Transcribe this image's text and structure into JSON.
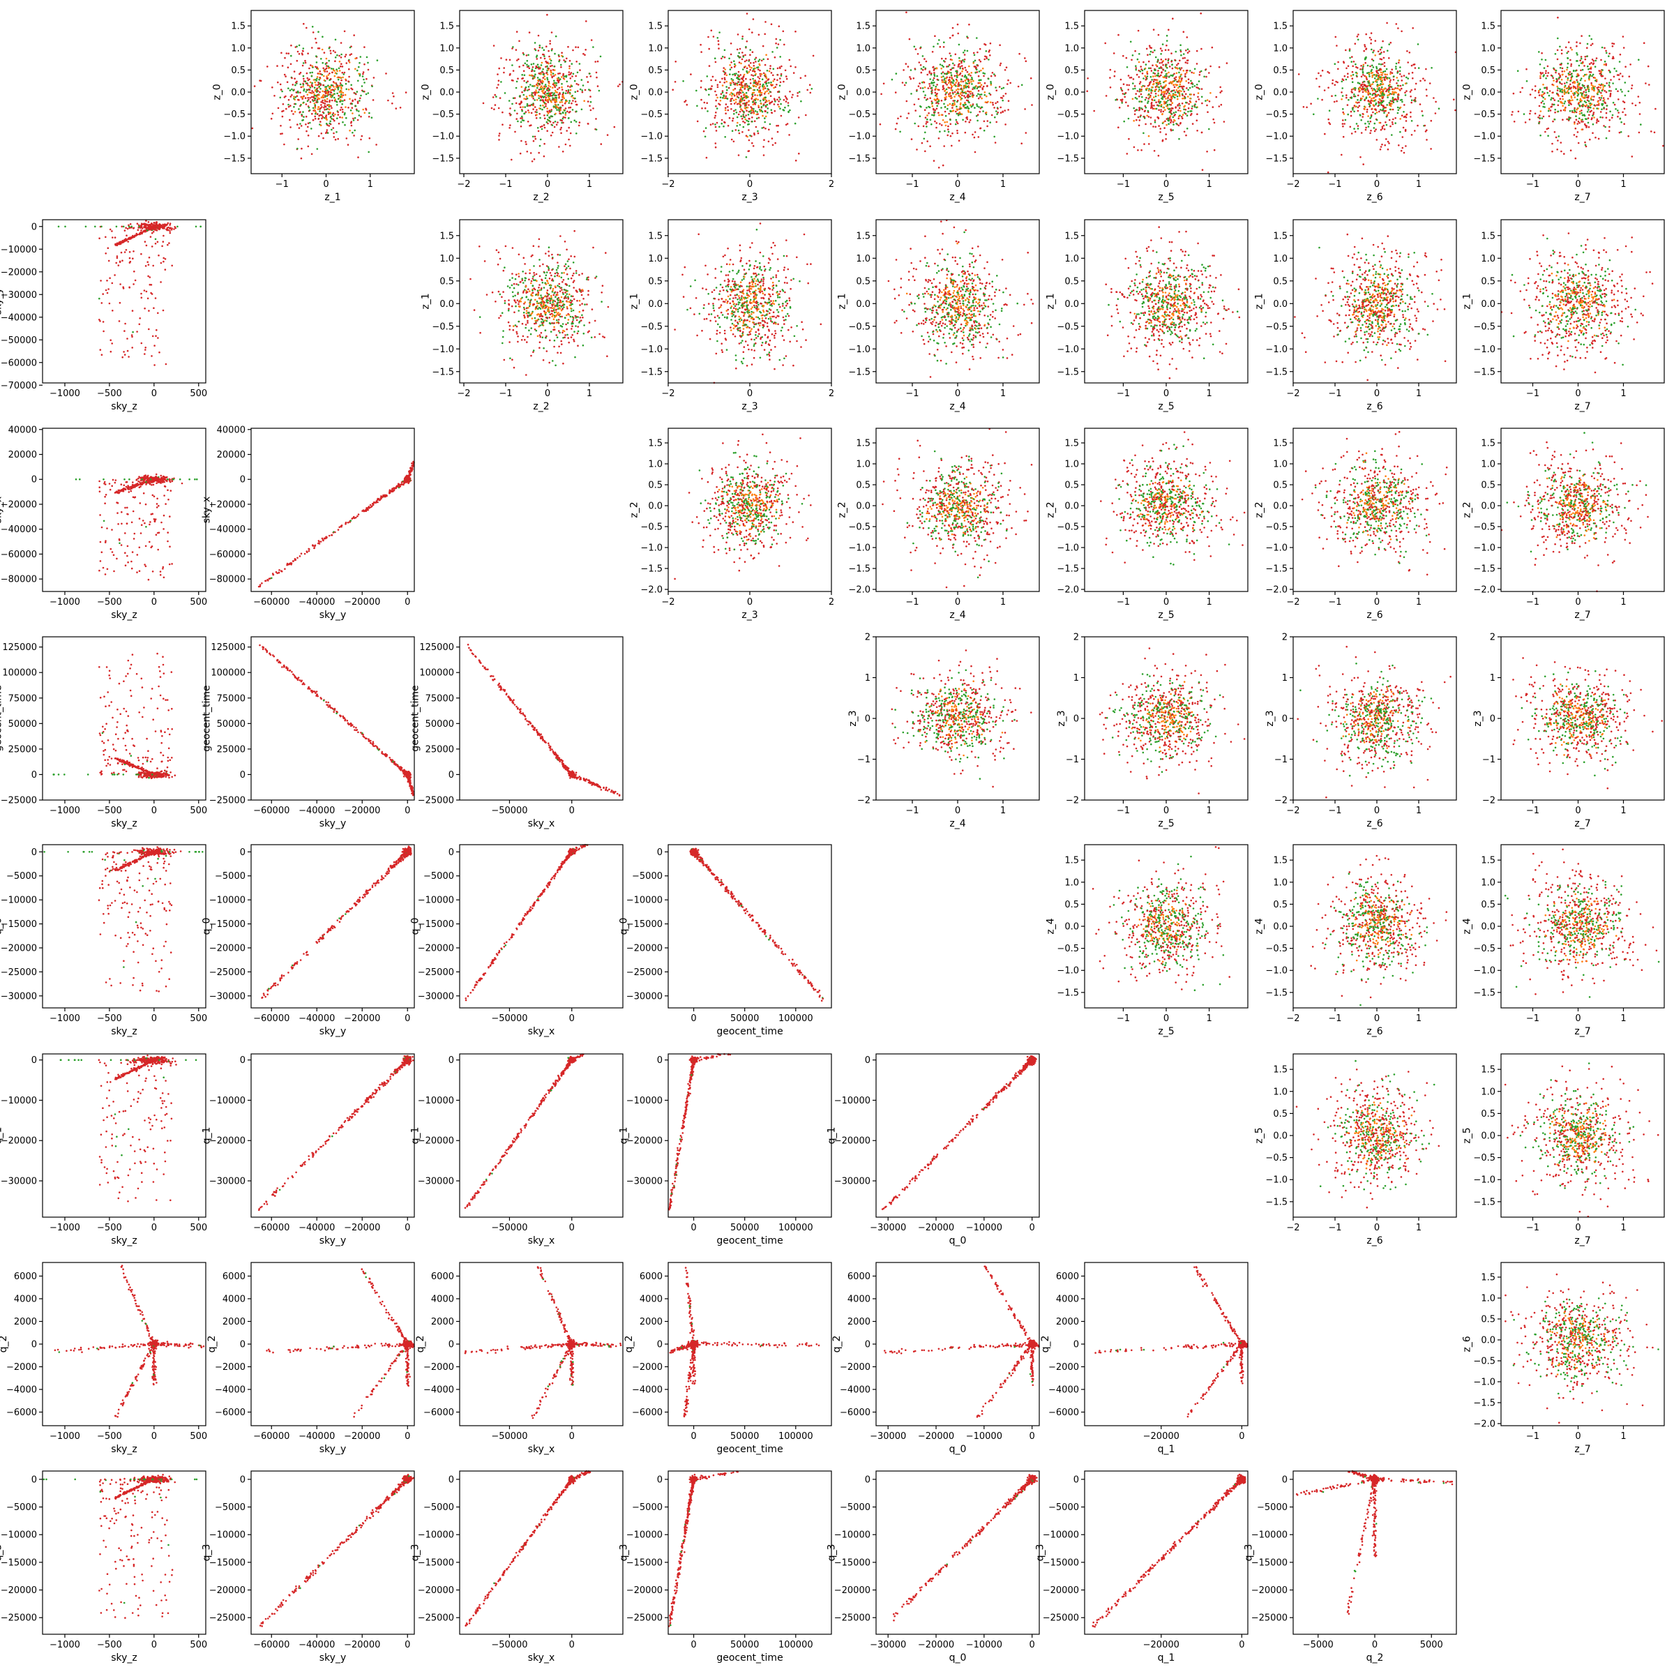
{
  "chart_data": {
    "type": "scatter",
    "title": "",
    "layout": "8x8 pairwise scatter matrix: lower triangle shows physical parameters, upper triangle shows latent z variables",
    "grid": false,
    "legend": null,
    "colors": {
      "red": "#d62728",
      "green": "#2ca02c",
      "orange": "#ff7f0e"
    },
    "lower_variables": [
      "sky_z",
      "sky_y",
      "sky_x",
      "geocent_time",
      "q_0",
      "q_1",
      "q_2",
      "q_3"
    ],
    "upper_variables": [
      "z_0",
      "z_1",
      "z_2",
      "z_3",
      "z_4",
      "z_5",
      "z_6",
      "z_7"
    ],
    "lower_axes": {
      "sky_z": {
        "lim": [
          -1250,
          580
        ],
        "ticks": [
          -1000,
          -500,
          0,
          500
        ],
        "labels": [
          "−1000",
          "−500",
          "0",
          "500"
        ]
      },
      "sky_y": {
        "lim": [
          -69000,
          3000
        ],
        "ticks": [
          -70000,
          -60000,
          -50000,
          -40000,
          -30000,
          -20000,
          -10000,
          0
        ],
        "labels": [
          "−70000",
          "−60000",
          "−50000",
          "−40000",
          "−30000",
          "−20000",
          "−10000",
          "0"
        ]
      },
      "sky_y_x": {
        "lim": [
          -69000,
          3000
        ],
        "ticks": [
          -60000,
          -40000,
          -20000,
          0
        ],
        "labels": [
          "−60000",
          "−40000",
          "−20000",
          "0"
        ]
      },
      "sky_x": {
        "lim": [
          -90000,
          41000
        ],
        "ticks": [
          -80000,
          -60000,
          -40000,
          -20000,
          0,
          20000,
          40000
        ],
        "labels": [
          "−80000",
          "−60000",
          "−40000",
          "−20000",
          "0",
          "20000",
          "40000"
        ]
      },
      "sky_x_x": {
        "lim": [
          -90000,
          41000
        ],
        "ticks": [
          -50000,
          0
        ],
        "labels": [
          "−50000",
          "0"
        ]
      },
      "geocent_time": {
        "lim": [
          -25000,
          135000
        ],
        "ticks": [
          -25000,
          0,
          25000,
          50000,
          75000,
          100000,
          125000
        ],
        "labels": [
          "−25000",
          "0",
          "25000",
          "50000",
          "75000",
          "100000",
          "125000"
        ]
      },
      "geocent_time_x": {
        "lim": [
          -25000,
          135000
        ],
        "ticks": [
          0,
          50000,
          100000
        ],
        "labels": [
          "0",
          "50000",
          "100000"
        ]
      },
      "q_0": {
        "lim": [
          -32500,
          1500
        ],
        "ticks": [
          -30000,
          -25000,
          -20000,
          -15000,
          -10000,
          -5000,
          0
        ],
        "labels": [
          "−30000",
          "−25000",
          "−20000",
          "−15000",
          "−10000",
          "−5000",
          "0"
        ]
      },
      "q_0_x": {
        "lim": [
          -32500,
          1500
        ],
        "ticks": [
          -30000,
          -20000,
          -10000,
          0
        ],
        "labels": [
          "−30000",
          "−20000",
          "−10000",
          "0"
        ]
      },
      "q_1": {
        "lim": [
          -39000,
          1500
        ],
        "ticks": [
          -30000,
          -20000,
          -10000,
          0
        ],
        "labels": [
          "−30000",
          "−20000",
          "−10000",
          "0"
        ]
      },
      "q_1_x": {
        "lim": [
          -39000,
          1500
        ],
        "ticks": [
          -20000,
          0
        ],
        "labels": [
          "−20000",
          "0"
        ]
      },
      "q_2": {
        "lim": [
          -7200,
          7200
        ],
        "ticks": [
          -6000,
          -4000,
          -2000,
          0,
          2000,
          4000,
          6000
        ],
        "labels": [
          "−6000",
          "−4000",
          "−2000",
          "0",
          "2000",
          "4000",
          "6000"
        ]
      },
      "q_2_x": {
        "lim": [
          -7200,
          7200
        ],
        "ticks": [
          -5000,
          0,
          5000
        ],
        "labels": [
          "−5000",
          "0",
          "5000"
        ]
      },
      "q_3": {
        "lim": [
          -28000,
          1500
        ],
        "ticks": [
          -25000,
          -20000,
          -15000,
          -10000,
          -5000,
          0
        ],
        "labels": [
          "−25000",
          "−20000",
          "−15000",
          "−10000",
          "−5000",
          "0"
        ]
      }
    },
    "z_x_axes": {
      "z_1": {
        "lim": [
          -1.7,
          2.0
        ],
        "ticks": [
          -1,
          0,
          1
        ],
        "labels": [
          "−1",
          "0",
          "1"
        ]
      },
      "z_2": {
        "lim": [
          -2.1,
          1.8
        ],
        "ticks": [
          -2,
          -1,
          0,
          1
        ],
        "labels": [
          "−2",
          "−1",
          "0",
          "1"
        ]
      },
      "z_3": {
        "lim": [
          -2.0,
          2.0
        ],
        "ticks": [
          -2,
          0,
          2
        ],
        "labels": [
          "−2",
          "0",
          "2"
        ]
      },
      "z_4": {
        "lim": [
          -1.8,
          1.8
        ],
        "ticks": [
          -1,
          0,
          1
        ],
        "labels": [
          "−1",
          "0",
          "1"
        ]
      },
      "z_5": {
        "lim": [
          -1.9,
          1.9
        ],
        "ticks": [
          -1,
          0,
          1
        ],
        "labels": [
          "−1",
          "0",
          "1"
        ]
      },
      "z_6": {
        "lim": [
          -2.0,
          1.9
        ],
        "ticks": [
          -2,
          -1,
          0,
          1
        ],
        "labels": [
          "−2",
          "−1",
          "0",
          "1"
        ]
      },
      "z_7": {
        "lim": [
          -1.7,
          1.9
        ],
        "ticks": [
          -1,
          0,
          1
        ],
        "labels": [
          "−1",
          "0",
          "1"
        ]
      }
    },
    "z_y_axes": {
      "z_0": {
        "lim": [
          -1.85,
          1.85
        ],
        "ticks": [
          -1.5,
          -1.0,
          -0.5,
          0.0,
          0.5,
          1.0,
          1.5
        ],
        "labels": [
          "−1.5",
          "−1.0",
          "−0.5",
          "0.0",
          "0.5",
          "1.0",
          "1.5"
        ]
      },
      "z_1": {
        "lim": [
          -1.75,
          1.85
        ],
        "ticks": [
          -1.5,
          -1.0,
          -0.5,
          0.0,
          0.5,
          1.0,
          1.5
        ],
        "labels": [
          "−1.5",
          "−1.0",
          "−0.5",
          "0.0",
          "0.5",
          "1.0",
          "1.5"
        ]
      },
      "z_2": {
        "lim": [
          -2.05,
          1.85
        ],
        "ticks": [
          -2.0,
          -1.5,
          -1.0,
          -0.5,
          0.0,
          0.5,
          1.0,
          1.5
        ],
        "labels": [
          "−2.0",
          "−1.5",
          "−1.0",
          "−0.5",
          "0.0",
          "0.5",
          "1.0",
          "1.5"
        ]
      },
      "z_3": {
        "lim": [
          -2.0,
          2.0
        ],
        "ticks": [
          -2,
          -1,
          0,
          1,
          2
        ],
        "labels": [
          "−2",
          "−1",
          "0",
          "1",
          "2"
        ]
      },
      "z_4": {
        "lim": [
          -1.85,
          1.85
        ],
        "ticks": [
          -1.5,
          -1.0,
          -0.5,
          0.0,
          0.5,
          1.0,
          1.5
        ],
        "labels": [
          "−1.5",
          "−1.0",
          "−0.5",
          "0.0",
          "0.5",
          "1.0",
          "1.5"
        ]
      },
      "z_5": {
        "lim": [
          -1.85,
          1.85
        ],
        "ticks": [
          -1.5,
          -1.0,
          -0.5,
          0.0,
          0.5,
          1.0,
          1.5
        ],
        "labels": [
          "−1.5",
          "−1.0",
          "−0.5",
          "0.0",
          "0.5",
          "1.0",
          "1.5"
        ]
      },
      "z_6": {
        "lim": [
          -2.05,
          1.85
        ],
        "ticks": [
          -2.0,
          -1.5,
          -1.0,
          -0.5,
          0.0,
          0.5,
          1.0,
          1.5
        ],
        "labels": [
          "−2.0",
          "−1.5",
          "−1.0",
          "−0.5",
          "0.0",
          "0.5",
          "1.0",
          "1.5"
        ]
      }
    },
    "lower_panels": [
      {
        "x": "sky_z",
        "y": "sky_y",
        "pattern": "fan"
      },
      {
        "x": "sky_z",
        "y": "sky_x",
        "pattern": "fan"
      },
      {
        "x": "sky_y",
        "y": "sky_x",
        "pattern": "V"
      },
      {
        "x": "sky_z",
        "y": "geocent_time",
        "pattern": "fan"
      },
      {
        "x": "sky_y",
        "y": "geocent_time",
        "pattern": "V"
      },
      {
        "x": "sky_x",
        "y": "geocent_time",
        "pattern": "V"
      },
      {
        "x": "sky_z",
        "y": "q_0",
        "pattern": "fan"
      },
      {
        "x": "sky_y",
        "y": "q_0",
        "pattern": "line"
      },
      {
        "x": "sky_x",
        "y": "q_0",
        "pattern": "V"
      },
      {
        "x": "geocent_time",
        "y": "q_0",
        "pattern": "line"
      },
      {
        "x": "sky_z",
        "y": "q_1",
        "pattern": "fan"
      },
      {
        "x": "sky_y",
        "y": "q_1",
        "pattern": "line"
      },
      {
        "x": "sky_x",
        "y": "q_1",
        "pattern": "V"
      },
      {
        "x": "geocent_time",
        "y": "q_1",
        "pattern": "V"
      },
      {
        "x": "q_0",
        "y": "q_1",
        "pattern": "line"
      },
      {
        "x": "sky_z",
        "y": "q_2",
        "pattern": "star"
      },
      {
        "x": "sky_y",
        "y": "q_2",
        "pattern": "star"
      },
      {
        "x": "sky_x",
        "y": "q_2",
        "pattern": "star"
      },
      {
        "x": "geocent_time",
        "y": "q_2",
        "pattern": "star"
      },
      {
        "x": "q_0",
        "y": "q_2",
        "pattern": "star"
      },
      {
        "x": "q_1",
        "y": "q_2",
        "pattern": "star"
      },
      {
        "x": "sky_z",
        "y": "q_3",
        "pattern": "fan"
      },
      {
        "x": "sky_y",
        "y": "q_3",
        "pattern": "line"
      },
      {
        "x": "sky_x",
        "y": "q_3",
        "pattern": "V"
      },
      {
        "x": "geocent_time",
        "y": "q_3",
        "pattern": "V"
      },
      {
        "x": "q_0",
        "y": "q_3",
        "pattern": "line"
      },
      {
        "x": "q_1",
        "y": "q_3",
        "pattern": "line"
      },
      {
        "x": "q_2",
        "y": "q_3",
        "pattern": "star"
      }
    ],
    "upper_panels_description": "Each upper-triangle panel (row z_i, column z_j, j > i) is an isotropic Gaussian cloud centred at (0, 0) with standard deviation about 0.55, drawn in red, green and orange points."
  }
}
